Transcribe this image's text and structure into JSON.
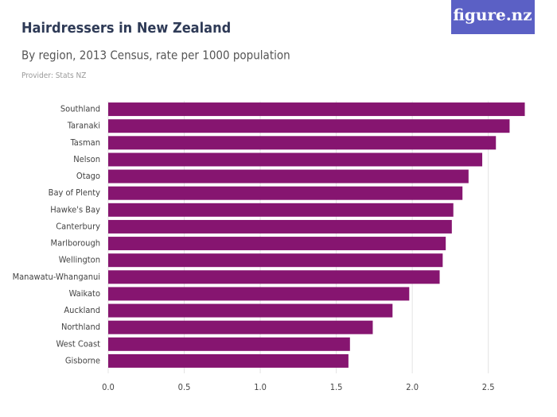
{
  "logo": "figure.nz",
  "chart_data": {
    "type": "bar",
    "orientation": "horizontal",
    "title": "Hairdressers in New Zealand",
    "subtitle": "By region, 2013 Census, rate per 1000 population",
    "source": "Provider: Stats NZ",
    "categories": [
      "Southland",
      "Taranaki",
      "Tasman",
      "Nelson",
      "Otago",
      "Bay of Plenty",
      "Hawke's Bay",
      "Canterbury",
      "Marlborough",
      "Wellington",
      "Manawatu-Whanganui",
      "Waikato",
      "Auckland",
      "Northland",
      "West Coast",
      "Gisborne"
    ],
    "values": [
      2.74,
      2.64,
      2.55,
      2.46,
      2.37,
      2.33,
      2.27,
      2.26,
      2.22,
      2.2,
      2.18,
      1.98,
      1.87,
      1.74,
      1.59,
      1.58
    ],
    "color": "#861570",
    "xlim": [
      0,
      2.8
    ],
    "xticks": [
      {
        "value": 0,
        "label": "0.0"
      },
      0.5,
      {
        "value": 1,
        "label": "1.0"
      },
      1.5,
      {
        "value": 2,
        "label": "2.0"
      },
      2.5
    ],
    "grid": true
  }
}
